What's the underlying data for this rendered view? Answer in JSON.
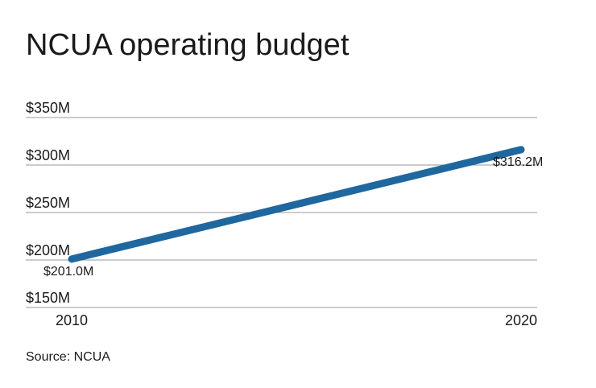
{
  "chart_data": {
    "type": "line",
    "title": "NCUA operating budget",
    "source": "Source: NCUA",
    "x": [
      2010,
      2020
    ],
    "values": [
      201.0,
      316.2
    ],
    "value_labels": [
      "$201.0M",
      "$316.2M"
    ],
    "color": "#1f679f",
    "xlim": [
      2010,
      2020
    ],
    "xticks": [
      2010,
      2020
    ],
    "ylim": [
      150,
      350
    ],
    "yticks": [
      {
        "value": 150,
        "label": "$150M"
      },
      {
        "value": 200,
        "label": "$200M"
      },
      {
        "value": 250,
        "label": "$250M"
      },
      {
        "value": 300,
        "label": "$300M"
      },
      {
        "value": 350,
        "label": "$350M"
      }
    ],
    "grid": true
  }
}
